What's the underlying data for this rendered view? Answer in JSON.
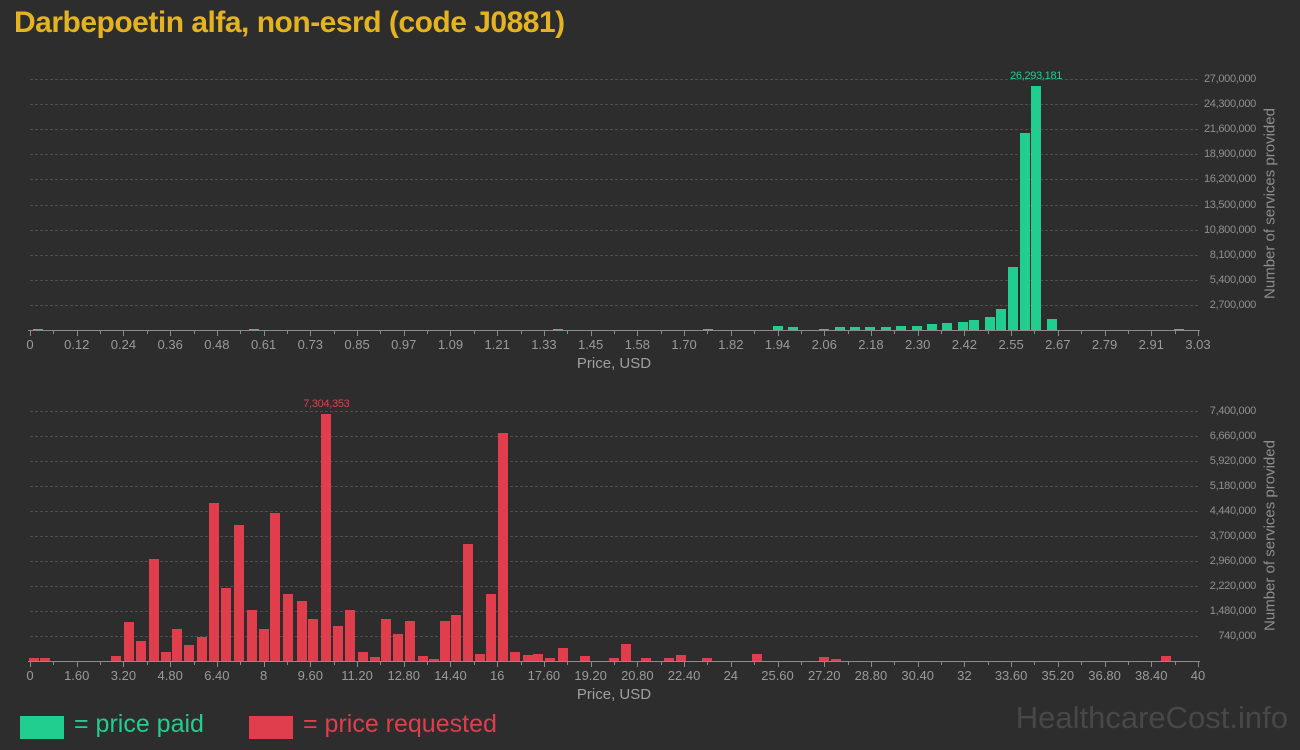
{
  "page": {
    "title": "Darbepoetin alfa, non-esrd (code J0881)",
    "watermark": "HealthcareCost.info"
  },
  "legend": {
    "position": "bottom-left",
    "paid_label": "= price paid",
    "requested_label": "= price requested"
  },
  "colors": {
    "background": "#2d2d2d",
    "title": "#e4b322",
    "paid": "#21ce90",
    "requested": "#e13e4d",
    "axis_text": "#9a9a9a",
    "tick_text": "#909090",
    "grid": "#4d4d4d",
    "watermark": "#484848"
  },
  "chart_data": [
    {
      "type": "bar",
      "series": "price paid",
      "color": "#21ce90",
      "xlabel": "Price, USD",
      "ylabel": "Number of services provided",
      "xlim": [
        0,
        3.03
      ],
      "ylim": [
        0,
        27000000
      ],
      "grid": true,
      "x_tick_labels": [
        "0",
        "0.12",
        "0.24",
        "0.36",
        "0.48",
        "0.61",
        "0.73",
        "0.85",
        "0.97",
        "1.09",
        "1.21",
        "1.33",
        "1.45",
        "1.58",
        "1.70",
        "1.82",
        "1.94",
        "2.06",
        "2.18",
        "2.30",
        "2.42",
        "2.55",
        "2.67",
        "2.79",
        "2.91",
        "3.03"
      ],
      "y_tick_labels": [
        "2,700,000",
        "5,400,000",
        "8,100,000",
        "10,800,000",
        "13,500,000",
        "16,200,000",
        "18,900,000",
        "21,600,000",
        "24,300,000",
        "27,000,000"
      ],
      "peak_annotation": "26,293,181",
      "points": [
        [
          0.02,
          150000
        ],
        [
          0.58,
          80000
        ],
        [
          1.37,
          90000
        ],
        [
          1.76,
          100000
        ],
        [
          1.94,
          400000
        ],
        [
          1.98,
          330000
        ],
        [
          2.06,
          160000
        ],
        [
          2.1,
          300000
        ],
        [
          2.14,
          320000
        ],
        [
          2.18,
          350000
        ],
        [
          2.22,
          320000
        ],
        [
          2.26,
          400000
        ],
        [
          2.3,
          450000
        ],
        [
          2.34,
          600000
        ],
        [
          2.38,
          800000
        ],
        [
          2.42,
          900000
        ],
        [
          2.45,
          1100000
        ],
        [
          2.49,
          1400000
        ],
        [
          2.52,
          2300000
        ],
        [
          2.55,
          6800000
        ],
        [
          2.58,
          21200000
        ],
        [
          2.61,
          26293181
        ],
        [
          2.65,
          1200000
        ],
        [
          2.98,
          130000
        ]
      ]
    },
    {
      "type": "bar",
      "series": "price requested",
      "color": "#e13e4d",
      "xlabel": "Price, USD",
      "ylabel": "Number of services provided",
      "xlim": [
        0,
        40
      ],
      "ylim": [
        0,
        7400000
      ],
      "grid": true,
      "x_tick_labels": [
        "0",
        "1.60",
        "3.20",
        "4.80",
        "6.40",
        "8",
        "9.60",
        "11.20",
        "12.80",
        "14.40",
        "16",
        "17.60",
        "19.20",
        "20.80",
        "22.40",
        "24",
        "25.60",
        "27.20",
        "28.80",
        "30.40",
        "32",
        "33.60",
        "35.20",
        "36.80",
        "38.40",
        "40"
      ],
      "y_tick_labels": [
        "740,000",
        "1,480,000",
        "2,220,000",
        "2,960,000",
        "3,700,000",
        "4,440,000",
        "5,180,000",
        "5,920,000",
        "6,660,000",
        "7,400,000"
      ],
      "peak_annotation": "7,304,353",
      "points": [
        [
          0.15,
          80000
        ],
        [
          0.5,
          80000
        ],
        [
          2.95,
          150000
        ],
        [
          3.4,
          1150000
        ],
        [
          3.8,
          590000
        ],
        [
          4.25,
          3030000
        ],
        [
          4.65,
          270000
        ],
        [
          5.05,
          960000
        ],
        [
          5.45,
          460000
        ],
        [
          5.9,
          710000
        ],
        [
          6.3,
          4690000
        ],
        [
          6.7,
          2170000
        ],
        [
          7.15,
          4040000
        ],
        [
          7.6,
          1500000
        ],
        [
          8.0,
          960000
        ],
        [
          8.4,
          4390000
        ],
        [
          8.85,
          1990000
        ],
        [
          9.3,
          1780000
        ],
        [
          9.7,
          1230000
        ],
        [
          10.15,
          7304353
        ],
        [
          10.55,
          1040000
        ],
        [
          10.95,
          1500000
        ],
        [
          11.4,
          270000
        ],
        [
          11.8,
          130000
        ],
        [
          12.2,
          1230000
        ],
        [
          12.6,
          790000
        ],
        [
          13.0,
          1180000
        ],
        [
          13.45,
          150000
        ],
        [
          13.85,
          60000
        ],
        [
          14.2,
          1180000
        ],
        [
          14.6,
          1360000
        ],
        [
          15.0,
          3450000
        ],
        [
          15.4,
          200000
        ],
        [
          15.8,
          1970000
        ],
        [
          16.2,
          6760000
        ],
        [
          16.6,
          270000
        ],
        [
          17.05,
          170000
        ],
        [
          17.4,
          200000
        ],
        [
          17.8,
          80000
        ],
        [
          18.25,
          390000
        ],
        [
          19.0,
          140000
        ],
        [
          20.0,
          80000
        ],
        [
          20.4,
          490000
        ],
        [
          21.1,
          80000
        ],
        [
          21.9,
          80000
        ],
        [
          22.3,
          170000
        ],
        [
          23.2,
          90000
        ],
        [
          24.9,
          200000
        ],
        [
          27.2,
          120000
        ],
        [
          27.6,
          60000
        ],
        [
          38.9,
          150000
        ]
      ]
    }
  ]
}
